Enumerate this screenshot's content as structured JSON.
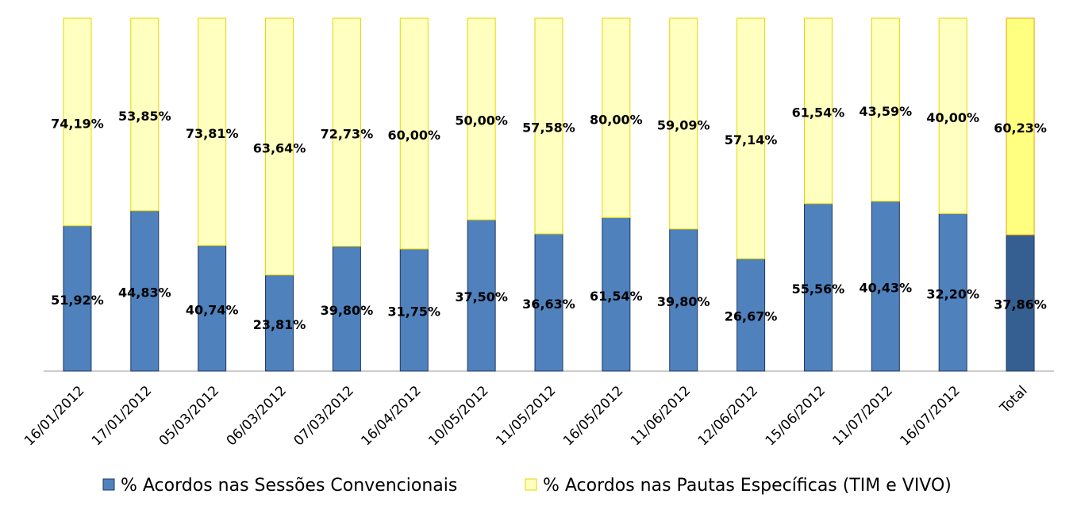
{
  "chart_data": {
    "type": "bar",
    "stacking": "percent",
    "categories": [
      "16/01/2012",
      "17/01/2012",
      "05/03/2012",
      "06/03/2012",
      "07/03/2012",
      "16/04/2012",
      "10/05/2012",
      "11/05/2012",
      "16/05/2012",
      "11/06/2012",
      "12/06/2012",
      "15/06/2012",
      "11/07/2012",
      "16/07/2012",
      "Total"
    ],
    "series": [
      {
        "name": "% Acordos nas Sessões Convencionais",
        "color": "#4f81bd",
        "stroke": "#1f3864",
        "colors": [
          "#4f81bd",
          "#4f81bd",
          "#4f81bd",
          "#4f81bd",
          "#4f81bd",
          "#4f81bd",
          "#4f81bd",
          "#4f81bd",
          "#4f81bd",
          "#4f81bd",
          "#4f81bd",
          "#4f81bd",
          "#4f81bd",
          "#4f81bd",
          "#365f91"
        ],
        "values": [
          51.92,
          44.83,
          40.74,
          23.81,
          39.8,
          31.75,
          37.5,
          36.63,
          61.54,
          39.8,
          26.67,
          55.56,
          40.43,
          32.2,
          37.86
        ],
        "value_labels": [
          "51,92%",
          "44,83%",
          "40,74%",
          "23,81%",
          "39,80%",
          "31,75%",
          "37,50%",
          "36,63%",
          "61,54%",
          "39,80%",
          "26,67%",
          "55,56%",
          "40,43%",
          "32,20%",
          "37,86%"
        ]
      },
      {
        "name": "% Acordos nas Pautas Específicas (TIM e VIVO)",
        "color": "#ffffc0",
        "stroke": "#e6d600",
        "colors": [
          "#ffffc0",
          "#ffffc0",
          "#ffffc0",
          "#ffffc0",
          "#ffffc0",
          "#ffffc0",
          "#ffffc0",
          "#ffffc0",
          "#ffffc0",
          "#ffffc0",
          "#ffffc0",
          "#ffffc0",
          "#ffffc0",
          "#ffffc0",
          "#ffff80"
        ],
        "values": [
          74.19,
          53.85,
          73.81,
          63.64,
          72.73,
          60.0,
          50.0,
          57.58,
          80.0,
          59.09,
          57.14,
          61.54,
          43.59,
          40.0,
          60.23
        ],
        "value_labels": [
          "74,19%",
          "53,85%",
          "73,81%",
          "63,64%",
          "72,73%",
          "60,00%",
          "50,00%",
          "57,58%",
          "80,00%",
          "59,09%",
          "57,14%",
          "61,54%",
          "43,59%",
          "40,00%",
          "60,23%"
        ]
      }
    ],
    "legend": "bottom"
  }
}
